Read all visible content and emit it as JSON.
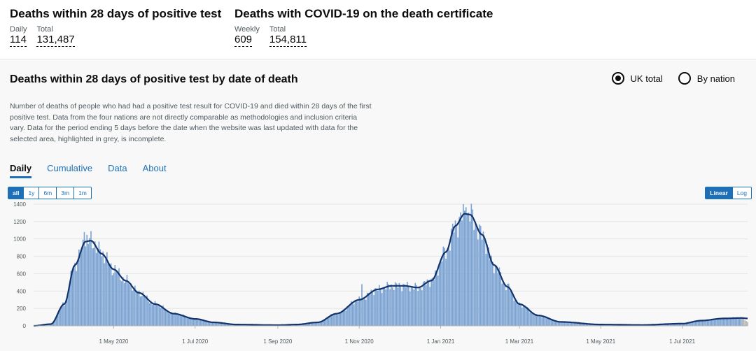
{
  "headline": {
    "left": {
      "title": "Deaths within 28 days of positive test",
      "metrics": [
        {
          "label": "Daily",
          "value": "114"
        },
        {
          "label": "Total",
          "value": "131,487"
        }
      ]
    },
    "right": {
      "title": "Deaths with COVID-19 on the death certificate",
      "metrics": [
        {
          "label": "Weekly",
          "value": "609"
        },
        {
          "label": "Total",
          "value": "154,811"
        }
      ]
    }
  },
  "card": {
    "title": "Deaths within 28 days of positive test by date of death",
    "radio": {
      "uk": "UK total",
      "nation": "By nation",
      "selected": "uk"
    },
    "description": "Number of deaths of people who had had a positive test result for COVID-19 and died within 28 days of the first positive test. Data from the four nations are not directly comparable as methodologies and inclusion criteria vary. Data for the period ending 5 days before the date when the website was last updated with data for the selected area, highlighted in grey, is incomplete.",
    "tabs": [
      "Daily",
      "Cumulative",
      "Data",
      "About"
    ],
    "active_tab": "Daily",
    "range_buttons": [
      "all",
      "1y",
      "6m",
      "3m",
      "1m"
    ],
    "active_range": "all",
    "scale_buttons": [
      "Linear",
      "Log"
    ],
    "active_scale": "Linear"
  },
  "colors": {
    "bar": "#7aa2d2",
    "line": "#12336b",
    "accent": "#1d70b8",
    "incomplete": "#b3b3b3"
  },
  "chart_data": {
    "type": "bar",
    "x_start": "2020-03-02",
    "x_end": "2021-08-19",
    "y_ticks": [
      0,
      200,
      400,
      600,
      800,
      1000,
      1200,
      1400
    ],
    "ylim": [
      0,
      1400
    ],
    "x_ticks": [
      "1 May 2020",
      "1 Jul 2020",
      "1 Sep 2020",
      "1 Nov 2020",
      "1 Jan 2021",
      "1 Mar 2021",
      "1 May 2021",
      "1 Jul 2021"
    ],
    "x_tick_dates": [
      "2020-05-01",
      "2020-07-01",
      "2020-09-01",
      "2020-11-01",
      "2021-01-01",
      "2021-03-01",
      "2021-05-01",
      "2021-07-01"
    ],
    "series": [
      {
        "name": "Daily deaths",
        "style": "bar"
      },
      {
        "name": "Rolling average",
        "style": "line"
      }
    ],
    "average_keypoints": [
      [
        "2020-03-02",
        0
      ],
      [
        "2020-03-15",
        20
      ],
      [
        "2020-03-25",
        250
      ],
      [
        "2020-04-02",
        700
      ],
      [
        "2020-04-10",
        970
      ],
      [
        "2020-04-14",
        980
      ],
      [
        "2020-04-22",
        830
      ],
      [
        "2020-05-01",
        650
      ],
      [
        "2020-05-10",
        520
      ],
      [
        "2020-05-20",
        380
      ],
      [
        "2020-06-01",
        250
      ],
      [
        "2020-06-15",
        140
      ],
      [
        "2020-07-01",
        80
      ],
      [
        "2020-07-15",
        40
      ],
      [
        "2020-08-01",
        15
      ],
      [
        "2020-09-01",
        8
      ],
      [
        "2020-09-15",
        15
      ],
      [
        "2020-10-01",
        40
      ],
      [
        "2020-10-15",
        140
      ],
      [
        "2020-11-01",
        300
      ],
      [
        "2020-11-15",
        420
      ],
      [
        "2020-11-25",
        460
      ],
      [
        "2020-12-05",
        460
      ],
      [
        "2020-12-15",
        440
      ],
      [
        "2020-12-25",
        520
      ],
      [
        "2021-01-05",
        850
      ],
      [
        "2021-01-12",
        1150
      ],
      [
        "2021-01-19",
        1290
      ],
      [
        "2021-01-23",
        1280
      ],
      [
        "2021-02-01",
        1050
      ],
      [
        "2021-02-10",
        700
      ],
      [
        "2021-02-20",
        450
      ],
      [
        "2021-03-01",
        250
      ],
      [
        "2021-03-15",
        120
      ],
      [
        "2021-04-01",
        45
      ],
      [
        "2021-05-01",
        15
      ],
      [
        "2021-06-01",
        10
      ],
      [
        "2021-07-01",
        25
      ],
      [
        "2021-07-15",
        60
      ],
      [
        "2021-08-01",
        85
      ],
      [
        "2021-08-14",
        90
      ],
      [
        "2021-08-19",
        85
      ]
    ],
    "spikes": [
      [
        "2020-04-09",
        1080
      ],
      [
        "2020-04-21",
        880
      ],
      [
        "2020-11-03",
        480
      ],
      [
        "2021-01-20",
        1365
      ],
      [
        "2021-01-28",
        1150
      ]
    ],
    "incomplete_from": "2021-08-15"
  }
}
